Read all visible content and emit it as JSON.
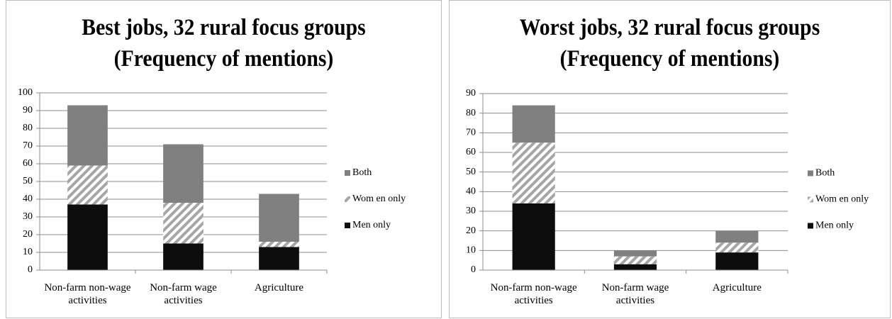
{
  "chart_data": [
    {
      "type": "stacked-bar",
      "title": "Best jobs, 32 rural focus groups\n(Frequency of mentions)",
      "categories": [
        "Non-farm non-wage\nactivities",
        "Non-farm wage\nactivities",
        "Agriculture"
      ],
      "series": [
        {
          "name": "Men only",
          "color": "#0d0d0d",
          "values": [
            37,
            15,
            13
          ]
        },
        {
          "name": "Wom en only",
          "color": "#a6a6a6",
          "pattern": "hatch",
          "values": [
            22,
            23,
            3
          ]
        },
        {
          "name": "Both",
          "color": "#808080",
          "values": [
            34,
            33,
            27
          ]
        }
      ],
      "ylim": [
        0,
        100
      ],
      "yticks": [
        0,
        10,
        20,
        30,
        40,
        50,
        60,
        70,
        80,
        90,
        100
      ],
      "grid": true,
      "legend": "right"
    },
    {
      "type": "stacked-bar",
      "title": "Worst jobs, 32 rural focus groups\n(Frequency of mentions)",
      "categories": [
        "Non-farm non-wage\nactivities",
        "Non-farm wage\nactivities",
        "Agriculture"
      ],
      "series": [
        {
          "name": "Men only",
          "color": "#0d0d0d",
          "values": [
            34,
            3,
            9
          ]
        },
        {
          "name": "Wom en only",
          "color": "#a6a6a6",
          "pattern": "hatch",
          "values": [
            31,
            4,
            5
          ]
        },
        {
          "name": "Both",
          "color": "#808080",
          "values": [
            19,
            3,
            6
          ]
        }
      ],
      "ylim": [
        0,
        90
      ],
      "yticks": [
        0,
        10,
        20,
        30,
        40,
        50,
        60,
        70,
        80,
        90
      ],
      "grid": true,
      "legend": "right"
    }
  ]
}
